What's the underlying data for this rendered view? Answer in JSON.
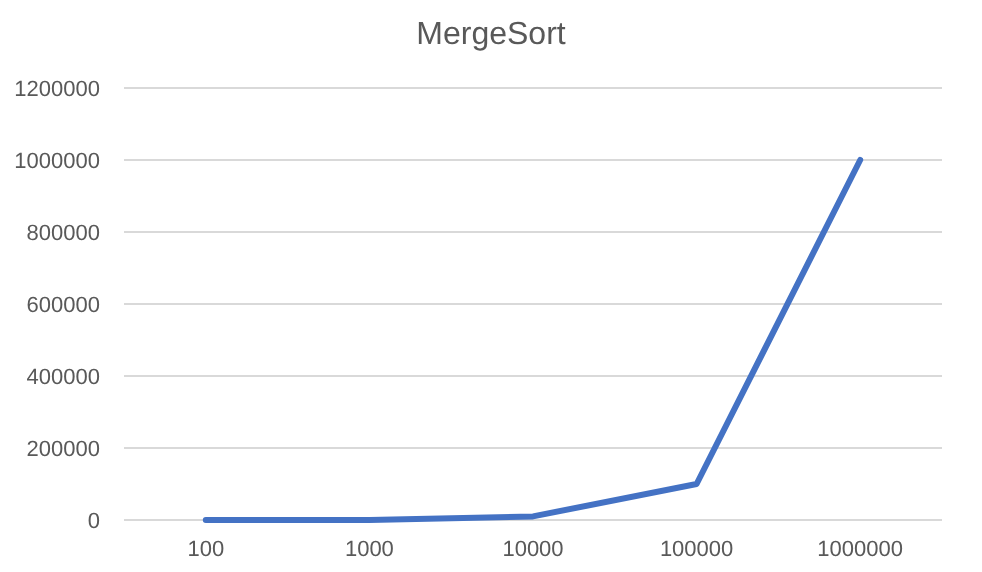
{
  "chart_data": {
    "type": "line",
    "title": "MergeSort",
    "categories": [
      "100",
      "1000",
      "10000",
      "100000",
      "1000000"
    ],
    "series": [
      {
        "color": "#4472c4",
        "values": [
          0,
          0,
          10000,
          100000,
          1000000
        ]
      }
    ],
    "ylim": [
      0,
      1200000
    ],
    "yticks": [
      0,
      200000,
      400000,
      600000,
      800000,
      1000000,
      1200000
    ],
    "grid": "y",
    "marker": "none",
    "line_style": "solid"
  }
}
